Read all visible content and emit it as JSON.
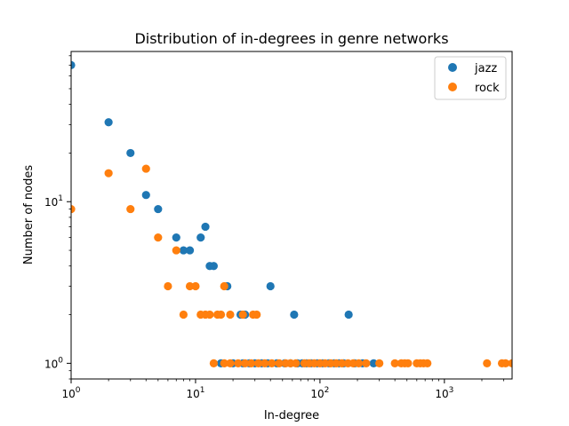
{
  "chart_data": {
    "type": "scatter",
    "title": "Distribution of in-degrees in genre networks",
    "xlabel": "In-degree",
    "ylabel": "Number of nodes",
    "xscale": "log",
    "yscale": "log",
    "xlim": [
      1,
      3500
    ],
    "ylim": [
      0.8,
      85
    ],
    "xticks": [
      {
        "value": 1,
        "base": "10",
        "exp": "0"
      },
      {
        "value": 10,
        "base": "10",
        "exp": "1"
      },
      {
        "value": 100,
        "base": "10",
        "exp": "2"
      },
      {
        "value": 1000,
        "base": "10",
        "exp": "3"
      }
    ],
    "yticks": [
      {
        "value": 1,
        "base": "10",
        "exp": "0"
      },
      {
        "value": 10,
        "base": "10",
        "exp": "1"
      }
    ],
    "grid": false,
    "legend_position": "top-right",
    "series": [
      {
        "name": "jazz",
        "color": "#1f77b4",
        "points": [
          [
            1,
            70
          ],
          [
            2,
            31
          ],
          [
            3,
            20
          ],
          [
            4,
            11
          ],
          [
            5,
            9
          ],
          [
            7,
            6
          ],
          [
            8,
            5
          ],
          [
            9,
            5
          ],
          [
            11,
            6
          ],
          [
            12,
            7
          ],
          [
            13,
            4
          ],
          [
            14,
            4
          ],
          [
            18,
            3
          ],
          [
            23,
            2
          ],
          [
            25,
            2
          ],
          [
            40,
            3
          ],
          [
            62,
            2
          ],
          [
            170,
            2
          ],
          [
            16,
            1
          ],
          [
            20,
            1
          ],
          [
            24,
            1
          ],
          [
            27,
            1
          ],
          [
            30,
            1
          ],
          [
            34,
            1
          ],
          [
            38,
            1
          ],
          [
            45,
            1
          ],
          [
            52,
            1
          ],
          [
            58,
            1
          ],
          [
            66,
            1
          ],
          [
            72,
            1
          ],
          [
            78,
            1
          ],
          [
            85,
            1
          ],
          [
            95,
            1
          ],
          [
            105,
            1
          ],
          [
            118,
            1
          ],
          [
            130,
            1
          ],
          [
            142,
            1
          ],
          [
            155,
            1
          ],
          [
            190,
            1
          ],
          [
            220,
            1
          ],
          [
            270,
            1
          ]
        ]
      },
      {
        "name": "rock",
        "color": "#ff7f0e",
        "points": [
          [
            1,
            9
          ],
          [
            2,
            15
          ],
          [
            3,
            9
          ],
          [
            4,
            16
          ],
          [
            5,
            6
          ],
          [
            6,
            3
          ],
          [
            7,
            5
          ],
          [
            8,
            2
          ],
          [
            9,
            3
          ],
          [
            10,
            3
          ],
          [
            11,
            2
          ],
          [
            12,
            2
          ],
          [
            13,
            2
          ],
          [
            15,
            2
          ],
          [
            16,
            2
          ],
          [
            17,
            3
          ],
          [
            19,
            2
          ],
          [
            24,
            2
          ],
          [
            29,
            2
          ],
          [
            31,
            2
          ],
          [
            14,
            1
          ],
          [
            17,
            1
          ],
          [
            19,
            1
          ],
          [
            22,
            1
          ],
          [
            25,
            1
          ],
          [
            28,
            1
          ],
          [
            32,
            1
          ],
          [
            36,
            1
          ],
          [
            41,
            1
          ],
          [
            47,
            1
          ],
          [
            53,
            1
          ],
          [
            58,
            1
          ],
          [
            64,
            1
          ],
          [
            75,
            1
          ],
          [
            82,
            1
          ],
          [
            90,
            1
          ],
          [
            100,
            1
          ],
          [
            110,
            1
          ],
          [
            122,
            1
          ],
          [
            135,
            1
          ],
          [
            150,
            1
          ],
          [
            168,
            1
          ],
          [
            185,
            1
          ],
          [
            205,
            1
          ],
          [
            235,
            1
          ],
          [
            300,
            1
          ],
          [
            400,
            1
          ],
          [
            450,
            1
          ],
          [
            480,
            1
          ],
          [
            510,
            1
          ],
          [
            600,
            1
          ],
          [
            640,
            1
          ],
          [
            680,
            1
          ],
          [
            730,
            1
          ],
          [
            2200,
            1
          ],
          [
            2900,
            1
          ],
          [
            3100,
            1
          ],
          [
            3500,
            1
          ]
        ]
      }
    ]
  }
}
